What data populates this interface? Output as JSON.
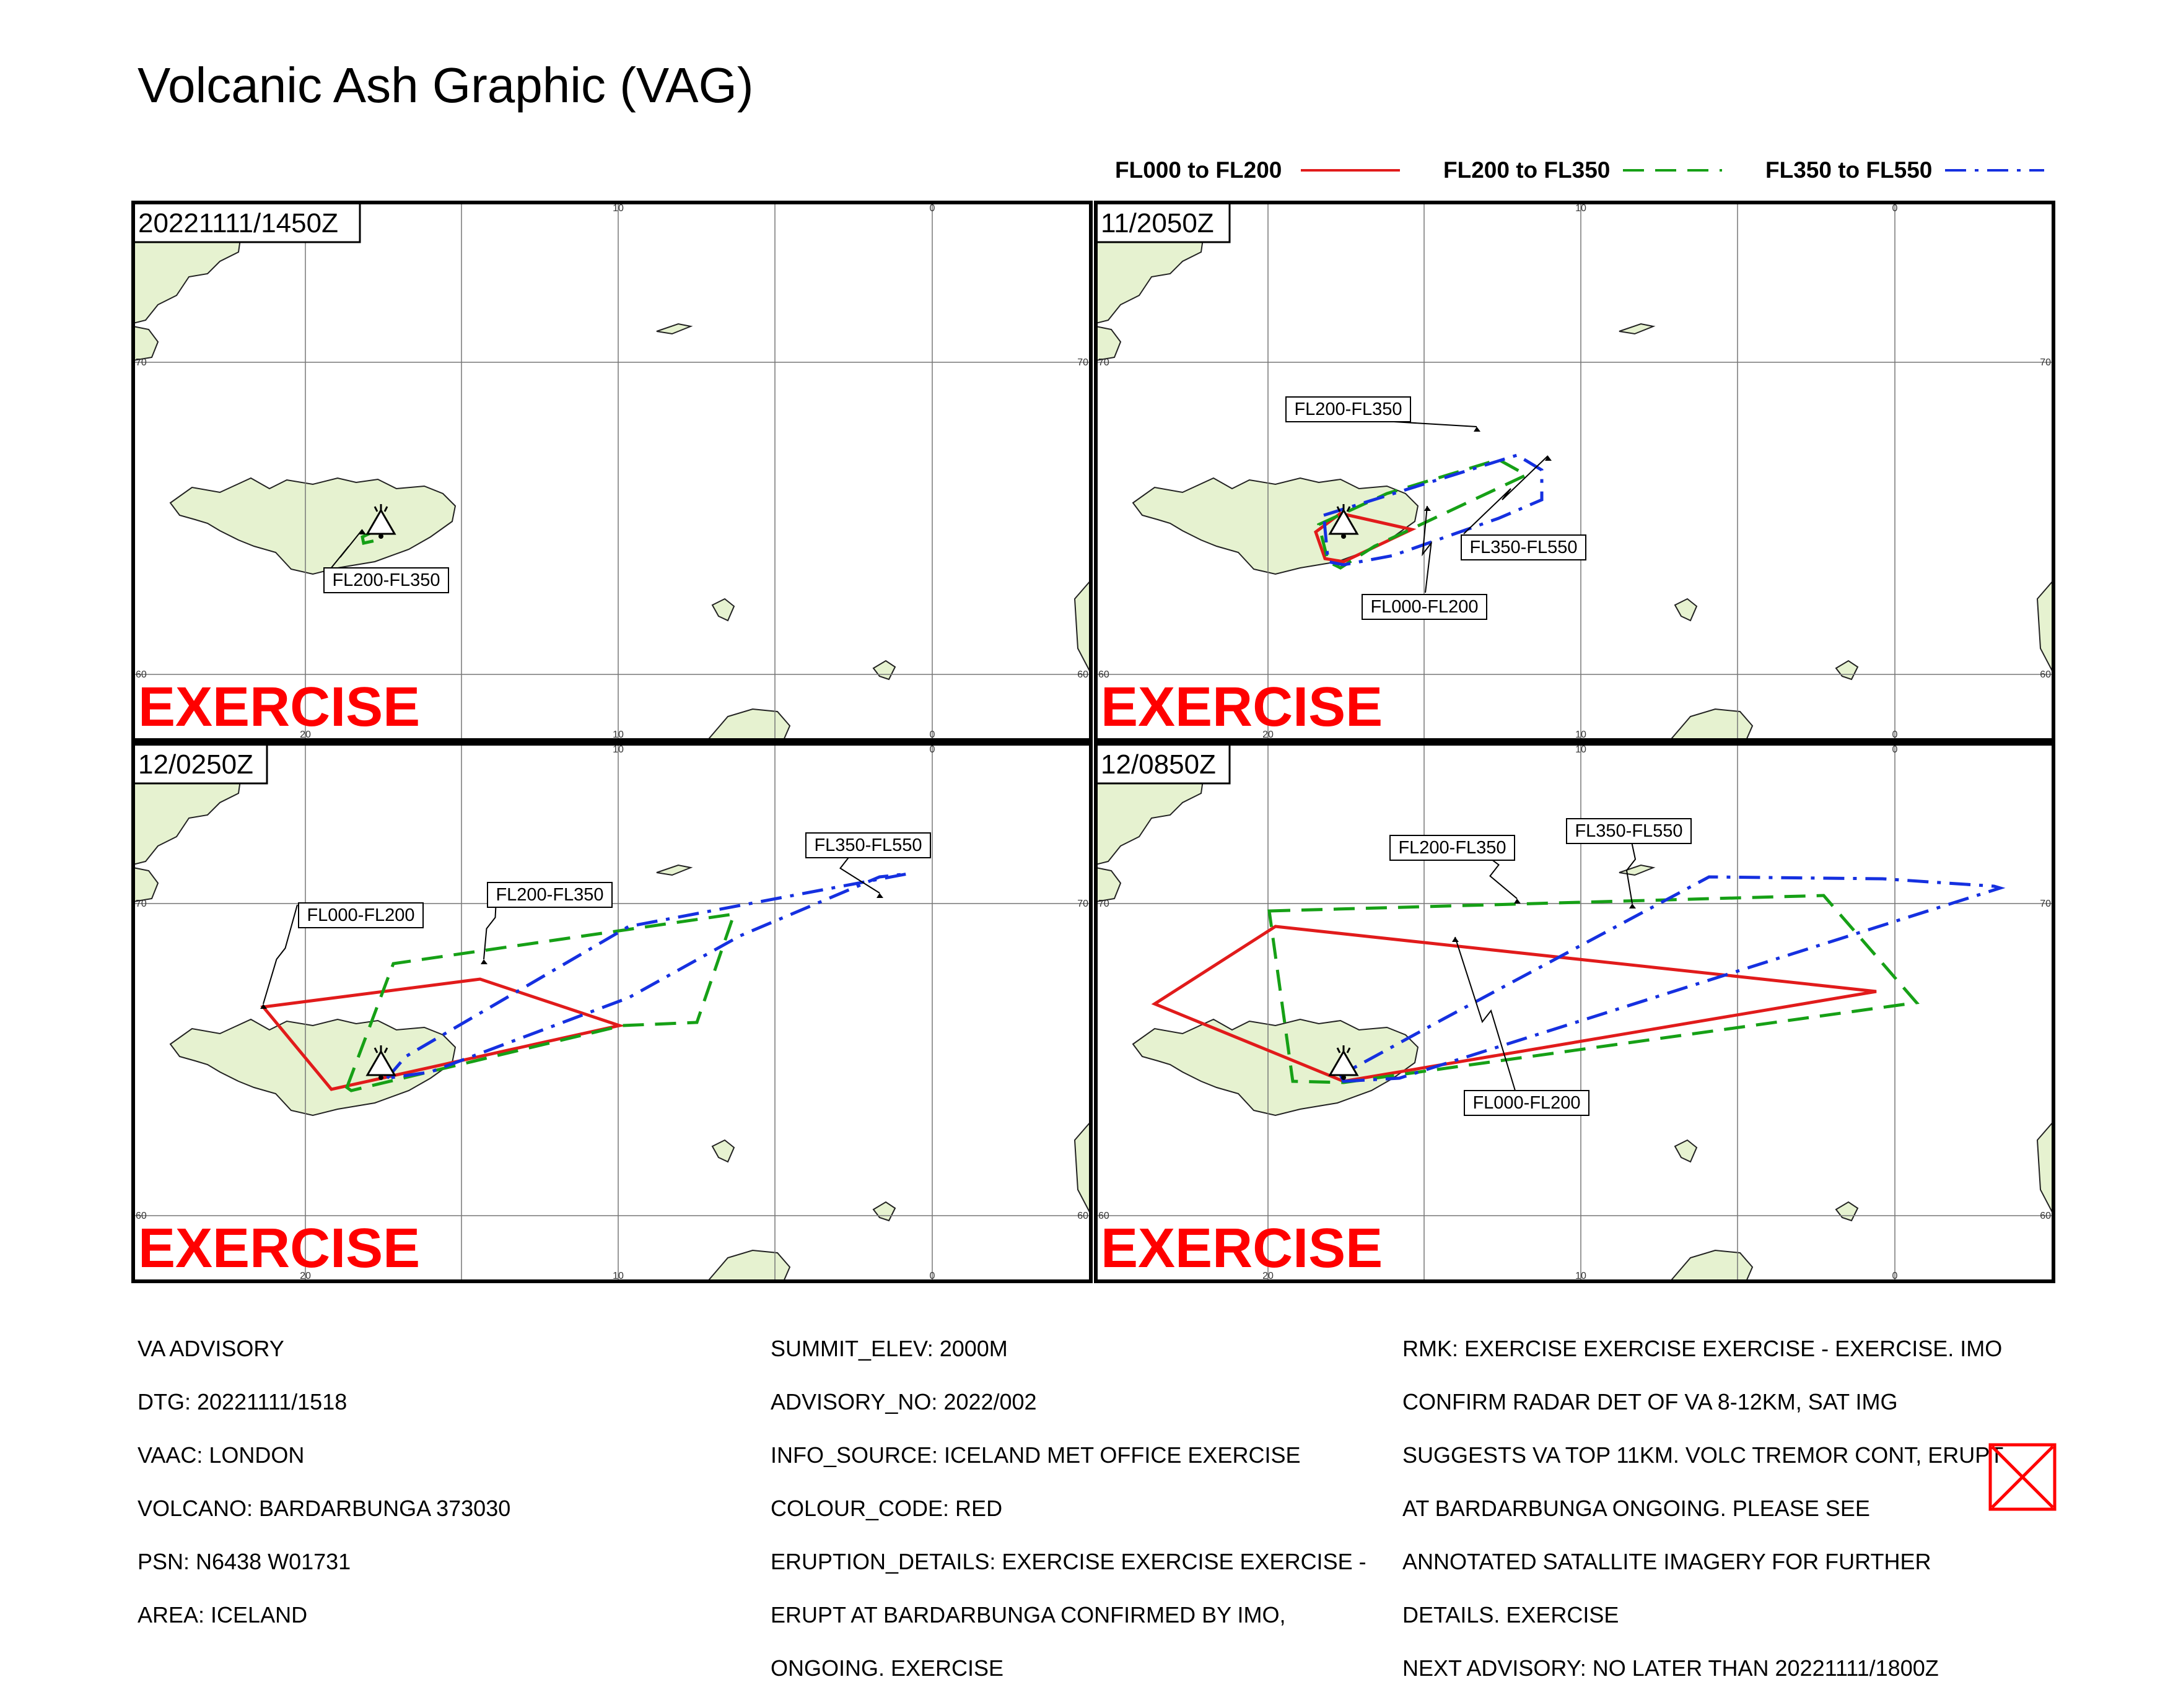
{
  "title": "Volcanic Ash Graphic (VAG)",
  "legend": [
    {
      "label": "FL000 to FL200",
      "color": "#e11b1b",
      "style": "solid"
    },
    {
      "label": "FL200 to FL350",
      "color": "#16a016",
      "style": "dashed"
    },
    {
      "label": "FL350 to FL550",
      "color": "#1530e0",
      "style": "dash-dot"
    }
  ],
  "watermark": "EXERCISE",
  "watermark_color": "#ff0000",
  "map_colors": {
    "land": "#e6f2d0",
    "coast": "#222222",
    "grid": "#777777"
  },
  "grid_labels": {
    "top": [
      "10",
      "0"
    ],
    "bottom": [
      "20",
      "10",
      "0"
    ],
    "left": [
      "70",
      "60"
    ],
    "right": [
      "70",
      "60"
    ]
  },
  "panels": [
    {
      "time": "20221111/1450Z",
      "labels": [
        "FL200-FL350"
      ]
    },
    {
      "time": "11/2050Z",
      "labels": [
        "FL200-FL350",
        "FL350-FL550",
        "FL000-FL200"
      ]
    },
    {
      "time": "12/0250Z",
      "labels": [
        "FL350-FL550",
        "FL200-FL350",
        "FL000-FL200"
      ]
    },
    {
      "time": "12/0850Z",
      "labels": [
        "FL350-FL550",
        "FL200-FL350",
        "FL000-FL200"
      ]
    }
  ],
  "info": {
    "col1": [
      "VA ADVISORY",
      "DTG: 20221111/1518",
      "VAAC: LONDON",
      "VOLCANO: BARDARBUNGA 373030",
      "PSN: N6438 W01731",
      "AREA: ICELAND"
    ],
    "col2": [
      "SUMMIT_ELEV: 2000M",
      "ADVISORY_NO: 2022/002",
      "INFO_SOURCE: ICELAND MET OFFICE EXERCISE",
      "COLOUR_CODE: RED",
      "ERUPTION_DETAILS: EXERCISE EXERCISE EXERCISE -",
      "ERUPT AT BARDARBUNGA CONFIRMED BY IMO,",
      "ONGOING. EXERCISE"
    ],
    "col3": [
      "RMK: EXERCISE EXERCISE EXERCISE - EXERCISE. IMO",
      "CONFIRM RADAR DET OF VA 8-12KM, SAT IMG",
      "SUGGESTS VA TOP 11KM. VOLC TREMOR CONT, ERUPT",
      "AT BARDARBUNGA ONGOING. PLEASE SEE",
      "ANNOTATED SATALLITE IMAGERY FOR FURTHER",
      "DETAILS. EXERCISE",
      "NEXT ADVISORY: NO LATER THAN 20221111/1800Z"
    ]
  }
}
